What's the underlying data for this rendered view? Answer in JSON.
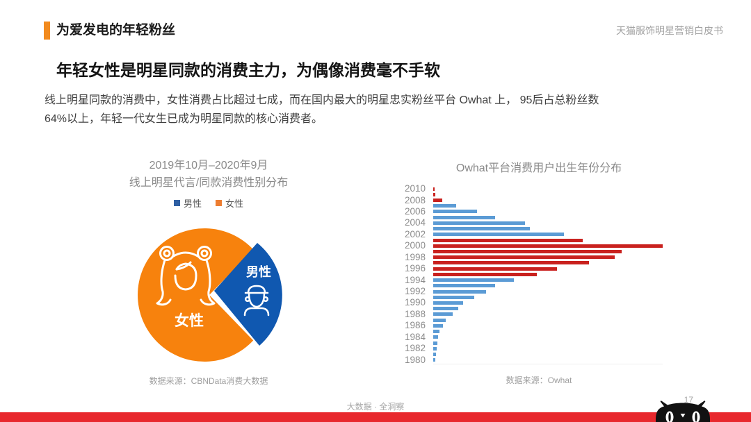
{
  "header": {
    "title": "为爱发电的年轻粉丝",
    "watermark": "天猫服饰明星营销白皮书"
  },
  "headline": "年轻女性是明星同款的消费主力，为偶像消费毫不手软",
  "paragraph": {
    "line1": "线上明星同款的消费中，女性消费占比超过七成，而在国内最大的明星忠实粉丝平台 Owhat 上， 95后占总粉丝数",
    "line2": "64%以上，年轻一代女生已成为明星同款的核心消费者。"
  },
  "colors": {
    "accent_orange": "#f28a1e",
    "pie_female_orange": "#f7820d",
    "pie_male_blue": "#1058b0",
    "legend_male_blue": "#2e5fa3",
    "legend_female_orange": "#ed7d31",
    "bar_blue": "#5b9bd5",
    "bar_red": "#c9211e",
    "footer_red": "#e8282d"
  },
  "icons": {
    "female": "girl-line-art-icon",
    "male": "boy-with-cap-line-art-icon",
    "logo": "tmall-cat-icon"
  },
  "chart_data": [
    {
      "type": "pie",
      "title_line1": "2019年10月–2020年9月",
      "title_line2": "线上明星代言/同款消费性别分布",
      "legend": [
        "男性",
        "女性"
      ],
      "slices": [
        {
          "label": "女性",
          "value": 72,
          "color": "#f7820d"
        },
        {
          "label": "男性",
          "value": 28,
          "color": "#1058b0"
        }
      ],
      "units": "percent (share estimated from slice angles; text states female share exceeds 70%)",
      "source": "数据来源：CBNData消费大数据",
      "legend_position": "top"
    },
    {
      "type": "bar",
      "orientation": "horizontal",
      "title": "Owhat平台消费用户出生年份分布",
      "years": [
        2010,
        2009,
        2008,
        2007,
        2006,
        2005,
        2004,
        2003,
        2002,
        2001,
        2000,
        1999,
        1998,
        1997,
        1996,
        1995,
        1994,
        1993,
        1992,
        1991,
        1990,
        1989,
        1988,
        1987,
        1986,
        1985,
        1984,
        1983,
        1982,
        1981,
        1980
      ],
      "values": [
        0.6,
        0.8,
        4,
        10,
        19,
        27,
        40,
        42,
        57,
        65,
        100,
        82,
        79,
        68,
        54,
        45,
        35,
        27,
        23,
        18,
        13,
        11,
        8.5,
        5.6,
        4.2,
        2.7,
        2.2,
        1.9,
        1.6,
        1.2,
        1.0
      ],
      "red_years": [
        2010,
        2009,
        2008,
        2001,
        2000,
        1999,
        1998,
        1997,
        1996,
        1995
      ],
      "value_range": [
        0,
        100
      ],
      "units": "relative user count, max year 2000 = 100 (no numeric axis shown)",
      "tick_labels_every": 2,
      "grid": false,
      "source": "数据来源：Owhat"
    }
  ],
  "footer": {
    "center_text": "大数据 · 全洞察",
    "page_number": "17"
  }
}
